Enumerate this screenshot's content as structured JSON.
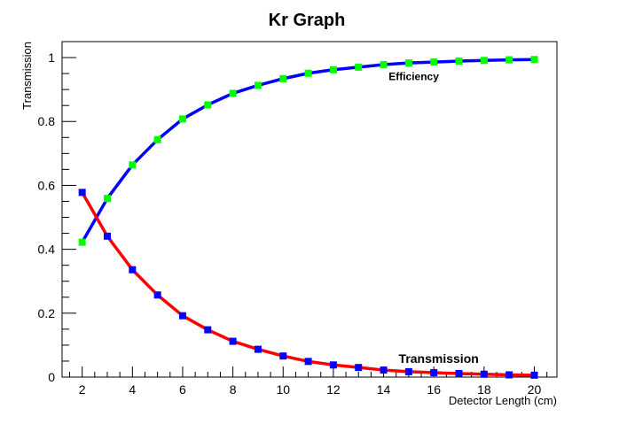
{
  "chart_data": {
    "type": "line",
    "title": "Kr Graph",
    "xlabel": "Detector Length (cm)",
    "ylabel": "Transmission",
    "xlim": [
      1.2,
      20.9
    ],
    "ylim": [
      0,
      1.05
    ],
    "x_ticks": [
      2,
      4,
      6,
      8,
      10,
      12,
      14,
      16,
      18,
      20
    ],
    "y_ticks": [
      0,
      0.2,
      0.4,
      0.6,
      0.8,
      1
    ],
    "y_tick_labels": [
      "0",
      "0.2",
      "0.4",
      "0.6",
      "0.8",
      "1"
    ],
    "grid": false,
    "legend": "none",
    "x": [
      2,
      3,
      4,
      5,
      6,
      7,
      8,
      9,
      10,
      11,
      12,
      13,
      14,
      15,
      16,
      17,
      18,
      19,
      20
    ],
    "series": [
      {
        "line_color": "#0000ff",
        "marker_color": "#00ff00",
        "values": [
          0.422,
          0.559,
          0.664,
          0.743,
          0.808,
          0.852,
          0.888,
          0.913,
          0.934,
          0.951,
          0.962,
          0.97,
          0.978,
          0.983,
          0.986,
          0.989,
          0.991,
          0.993,
          0.994
        ]
      },
      {
        "line_color": "#ff0000",
        "marker_color": "#0000ff",
        "values": [
          0.578,
          0.441,
          0.336,
          0.257,
          0.192,
          0.148,
          0.112,
          0.087,
          0.066,
          0.049,
          0.038,
          0.03,
          0.022,
          0.017,
          0.014,
          0.011,
          0.009,
          0.007,
          0.006
        ]
      }
    ],
    "annotations": [
      {
        "text": "Efficiency",
        "x": 14.2,
        "y": 0.93
      },
      {
        "text": "Transmission",
        "x": 14.6,
        "y": 0.045
      }
    ]
  }
}
